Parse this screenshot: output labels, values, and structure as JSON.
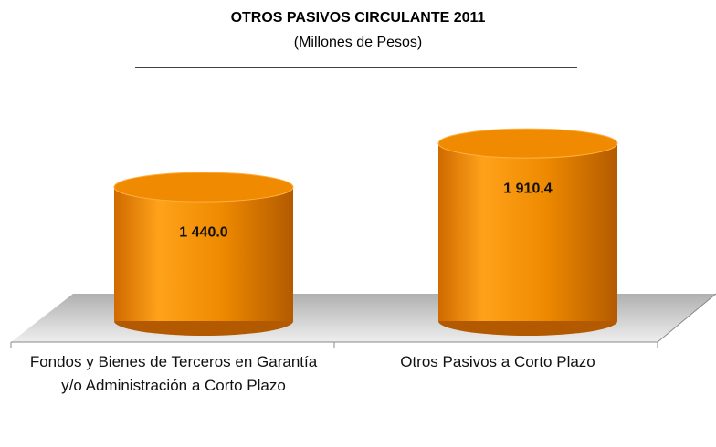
{
  "chart_data": {
    "type": "bar",
    "title": "OTROS PASIVOS CIRCULANTE 2011",
    "subtitle": "(Millones de Pesos)",
    "categories": [
      "Fondos y Bienes de Terceros en Garantía y/o Administración a Corto Plazo",
      "Otros Pasivos a Corto Plazo"
    ],
    "values": [
      1440.0,
      1910.4
    ],
    "value_labels": [
      "1 440.0",
      "1 910.4"
    ],
    "color": "#f08a00"
  }
}
